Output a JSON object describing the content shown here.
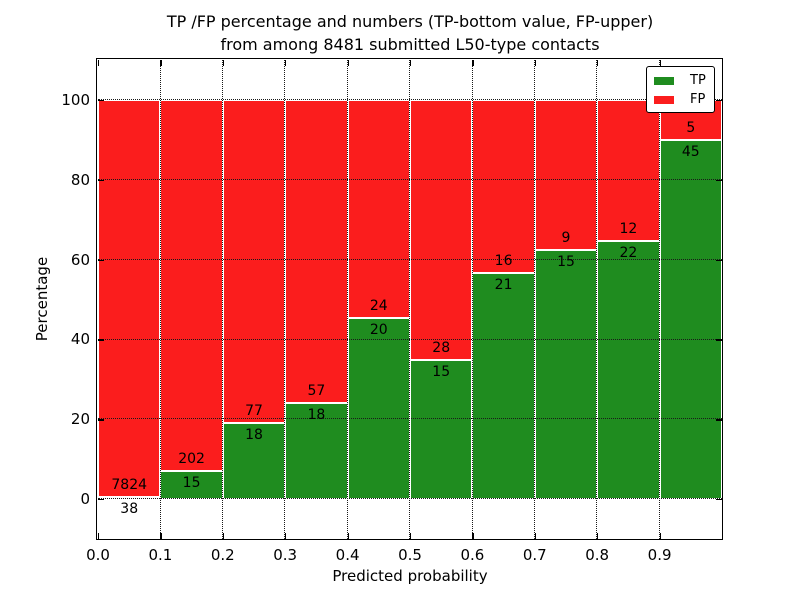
{
  "figure": {
    "title_line1": "TP /FP percentage and numbers (TP-bottom value, FP-upper)",
    "title_line2": "from among 8481 submitted L50-type contacts",
    "xlabel": "Predicted probability",
    "ylabel": "Percentage"
  },
  "chart_data": {
    "type": "bar",
    "stacked": true,
    "normalized": "each bin stacked to 100%",
    "title": "TP /FP percentage and numbers (TP-bottom value, FP-upper) from among 8481 submitted L50-type contacts",
    "xlabel": "Predicted probability",
    "ylabel": "Percentage",
    "xlim": [
      0.0,
      1.0
    ],
    "ylim": [
      -10,
      110
    ],
    "xticks": [
      "0.0",
      "0.1",
      "0.2",
      "0.3",
      "0.4",
      "0.5",
      "0.6",
      "0.7",
      "0.8",
      "0.9"
    ],
    "yticks": [
      0,
      20,
      40,
      60,
      80,
      100
    ],
    "grid": "dotted black, horizontal at yticks and vertical at xticks",
    "total_contacts": 8481,
    "bin_width": 0.1,
    "bin_starts": [
      0.0,
      0.1,
      0.2,
      0.3,
      0.4,
      0.5,
      0.6,
      0.7,
      0.8,
      0.9
    ],
    "series": [
      {
        "name": "TP",
        "color": "#1f8c1f",
        "counts": [
          38,
          15,
          18,
          18,
          20,
          15,
          21,
          15,
          22,
          45
        ],
        "pct_of_bin": [
          0.5,
          6.9,
          18.9,
          24.0,
          45.5,
          34.9,
          56.8,
          62.5,
          64.7,
          90.0
        ]
      },
      {
        "name": "FP",
        "color": "#fb1d1d",
        "counts": [
          7824,
          202,
          77,
          57,
          24,
          28,
          16,
          9,
          12,
          5
        ],
        "pct_of_bin": [
          99.5,
          93.1,
          81.1,
          76.0,
          54.5,
          65.1,
          43.2,
          37.5,
          35.3,
          10.0
        ]
      }
    ],
    "legend": {
      "position": "upper right",
      "entries": [
        {
          "label": "TP",
          "color": "#1f8c1f"
        },
        {
          "label": "FP",
          "color": "#fb1d1d"
        }
      ]
    }
  }
}
